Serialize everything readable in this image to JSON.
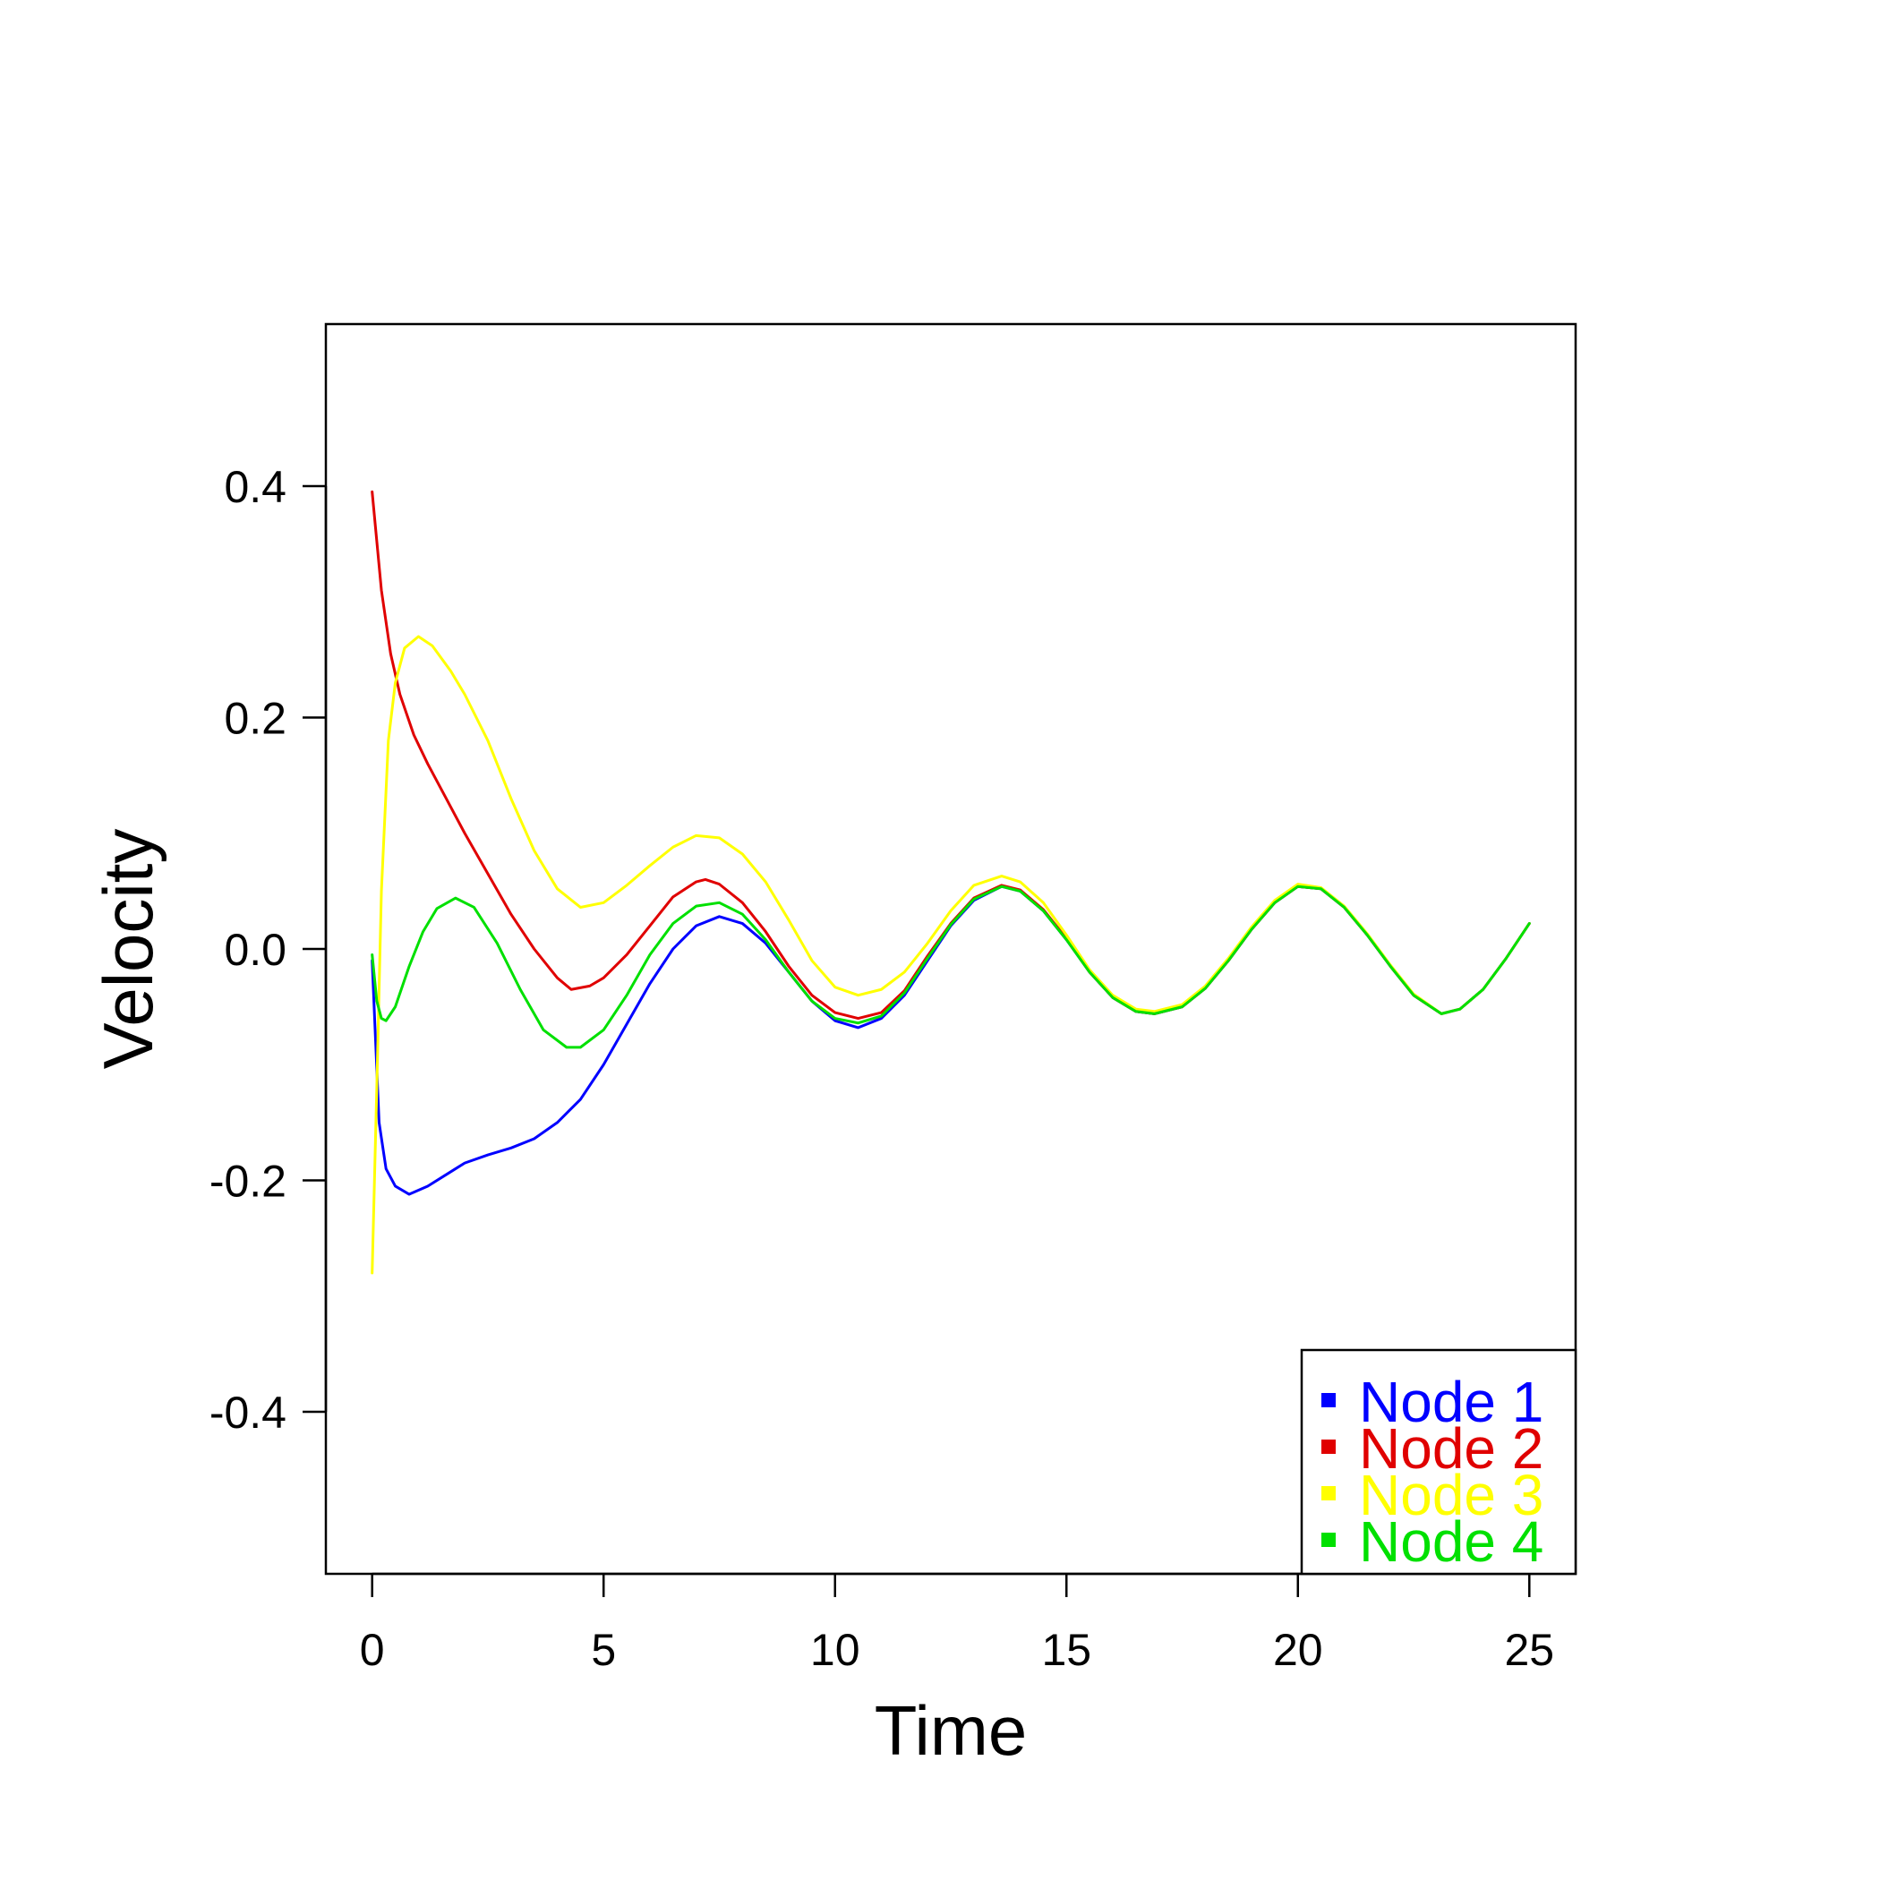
{
  "chart_data": {
    "type": "line",
    "title": "",
    "xlabel": "Time",
    "ylabel": "Velocity",
    "xlim": [
      -1,
      26
    ],
    "ylim": [
      -0.54,
      0.54
    ],
    "xticks": [
      0,
      5,
      10,
      15,
      20,
      25
    ],
    "xtick_labels": [
      "0",
      "5",
      "10",
      "15",
      "20",
      "25"
    ],
    "yticks": [
      -0.4,
      -0.2,
      0.0,
      0.2,
      0.4
    ],
    "ytick_labels": [
      "-0.4",
      "-0.2",
      "0.0",
      "0.2",
      "0.4"
    ],
    "grid": false,
    "legend_position": "bottom-right",
    "series": [
      {
        "name": "Node 1",
        "color": "#0000ff",
        "x": [
          0,
          0.15,
          0.3,
          0.5,
          0.8,
          1.2,
          1.6,
          2.0,
          2.5,
          3.0,
          3.5,
          4.0,
          4.5,
          5.0,
          5.5,
          6.0,
          6.5,
          7.0,
          7.5,
          8.0,
          8.5,
          9.0,
          9.5,
          10.0,
          10.5,
          11.0,
          11.5,
          12.0,
          12.5,
          13.0,
          13.6,
          14.0,
          14.5,
          15.0,
          15.5,
          16.0,
          16.5,
          16.9,
          17.5,
          18.0,
          18.5,
          19.0,
          19.5,
          20.0,
          20.5,
          21.0,
          21.5,
          22.0,
          22.5,
          23.1,
          23.5,
          24.0,
          24.5,
          25.0
        ],
        "values": [
          -0.01,
          -0.15,
          -0.19,
          -0.205,
          -0.212,
          -0.205,
          -0.195,
          -0.185,
          -0.178,
          -0.172,
          -0.164,
          -0.15,
          -0.13,
          -0.1,
          -0.065,
          -0.03,
          0.0,
          0.02,
          0.028,
          0.022,
          0.005,
          -0.02,
          -0.045,
          -0.062,
          -0.068,
          -0.06,
          -0.04,
          -0.01,
          0.02,
          0.042,
          0.054,
          0.05,
          0.033,
          0.008,
          -0.02,
          -0.042,
          -0.054,
          -0.056,
          -0.05,
          -0.034,
          -0.01,
          0.017,
          0.04,
          0.054,
          0.052,
          0.036,
          0.012,
          -0.015,
          -0.04,
          -0.056,
          -0.052,
          -0.035,
          -0.008,
          0.022
        ]
      },
      {
        "name": "Node 2",
        "color": "#e00000",
        "x": [
          0,
          0.2,
          0.4,
          0.6,
          0.9,
          1.2,
          1.6,
          2.0,
          2.5,
          3.0,
          3.5,
          4.0,
          4.3,
          4.7,
          5.0,
          5.5,
          6.0,
          6.5,
          7.0,
          7.2,
          7.5,
          8.0,
          8.5,
          9.0,
          9.5,
          10.0,
          10.5,
          11.0,
          11.5,
          12.0,
          12.5,
          13.0,
          13.6,
          14.0,
          14.5,
          15.0,
          15.5,
          16.0,
          16.5,
          16.9,
          17.5,
          18.0,
          18.5,
          19.0,
          19.5,
          20.0,
          20.5,
          21.0,
          21.5,
          22.0,
          22.5,
          23.1,
          23.5,
          24.0,
          24.5,
          25.0
        ],
        "values": [
          0.395,
          0.31,
          0.255,
          0.22,
          0.185,
          0.16,
          0.13,
          0.1,
          0.065,
          0.03,
          0.0,
          -0.025,
          -0.035,
          -0.032,
          -0.025,
          -0.005,
          0.02,
          0.045,
          0.058,
          0.06,
          0.056,
          0.04,
          0.015,
          -0.015,
          -0.04,
          -0.055,
          -0.06,
          -0.055,
          -0.036,
          -0.006,
          0.022,
          0.044,
          0.055,
          0.051,
          0.034,
          0.009,
          -0.02,
          -0.042,
          -0.054,
          -0.056,
          -0.05,
          -0.034,
          -0.01,
          0.017,
          0.04,
          0.054,
          0.052,
          0.036,
          0.012,
          -0.015,
          -0.04,
          -0.056,
          -0.052,
          -0.035,
          -0.008,
          0.022
        ]
      },
      {
        "name": "Node 3",
        "color": "#ffff00",
        "x": [
          0,
          0.1,
          0.2,
          0.35,
          0.5,
          0.7,
          1.0,
          1.3,
          1.7,
          2.0,
          2.5,
          3.0,
          3.5,
          4.0,
          4.5,
          5.0,
          5.5,
          6.0,
          6.5,
          7.0,
          7.5,
          8.0,
          8.5,
          9.0,
          9.5,
          10.0,
          10.5,
          11.0,
          11.5,
          12.0,
          12.5,
          13.0,
          13.6,
          14.0,
          14.5,
          15.0,
          15.5,
          16.0,
          16.5,
          16.9,
          17.5,
          18.0,
          18.5,
          19.0,
          19.5,
          20.0,
          20.5,
          21.0,
          21.5,
          22.0,
          22.5,
          23.1,
          23.5,
          24.0,
          24.5,
          25.0
        ],
        "values": [
          -0.28,
          -0.12,
          0.05,
          0.18,
          0.23,
          0.26,
          0.27,
          0.262,
          0.24,
          0.22,
          0.18,
          0.13,
          0.085,
          0.052,
          0.036,
          0.04,
          0.055,
          0.072,
          0.088,
          0.098,
          0.096,
          0.082,
          0.058,
          0.025,
          -0.01,
          -0.033,
          -0.04,
          -0.035,
          -0.02,
          0.005,
          0.033,
          0.055,
          0.063,
          0.058,
          0.04,
          0.012,
          -0.018,
          -0.04,
          -0.052,
          -0.054,
          -0.048,
          -0.032,
          -0.008,
          0.019,
          0.042,
          0.056,
          0.053,
          0.037,
          0.013,
          -0.014,
          -0.039,
          -0.056,
          -0.052,
          -0.035,
          -0.008,
          0.022
        ]
      },
      {
        "name": "Node 4",
        "color": "#00e000",
        "x": [
          0,
          0.1,
          0.2,
          0.3,
          0.5,
          0.8,
          1.1,
          1.4,
          1.8,
          2.2,
          2.7,
          3.2,
          3.7,
          4.2,
          4.5,
          5.0,
          5.5,
          6.0,
          6.5,
          7.0,
          7.5,
          8.0,
          8.5,
          9.0,
          9.5,
          10.0,
          10.5,
          11.0,
          11.5,
          12.0,
          12.5,
          13.0,
          13.6,
          14.0,
          14.5,
          15.0,
          15.5,
          16.0,
          16.5,
          16.9,
          17.5,
          18.0,
          18.5,
          19.0,
          19.5,
          20.0,
          20.5,
          21.0,
          21.5,
          22.0,
          22.5,
          23.1,
          23.5,
          24.0,
          24.5,
          25.0
        ],
        "values": [
          -0.005,
          -0.045,
          -0.06,
          -0.062,
          -0.05,
          -0.015,
          0.015,
          0.035,
          0.044,
          0.036,
          0.005,
          -0.035,
          -0.07,
          -0.085,
          -0.085,
          -0.07,
          -0.04,
          -0.005,
          0.022,
          0.037,
          0.04,
          0.03,
          0.008,
          -0.02,
          -0.045,
          -0.06,
          -0.064,
          -0.058,
          -0.038,
          -0.008,
          0.021,
          0.043,
          0.054,
          0.05,
          0.033,
          0.008,
          -0.02,
          -0.042,
          -0.054,
          -0.056,
          -0.05,
          -0.034,
          -0.01,
          0.017,
          0.04,
          0.054,
          0.052,
          0.036,
          0.012,
          -0.015,
          -0.04,
          -0.056,
          -0.052,
          -0.035,
          -0.008,
          0.022
        ]
      }
    ]
  }
}
